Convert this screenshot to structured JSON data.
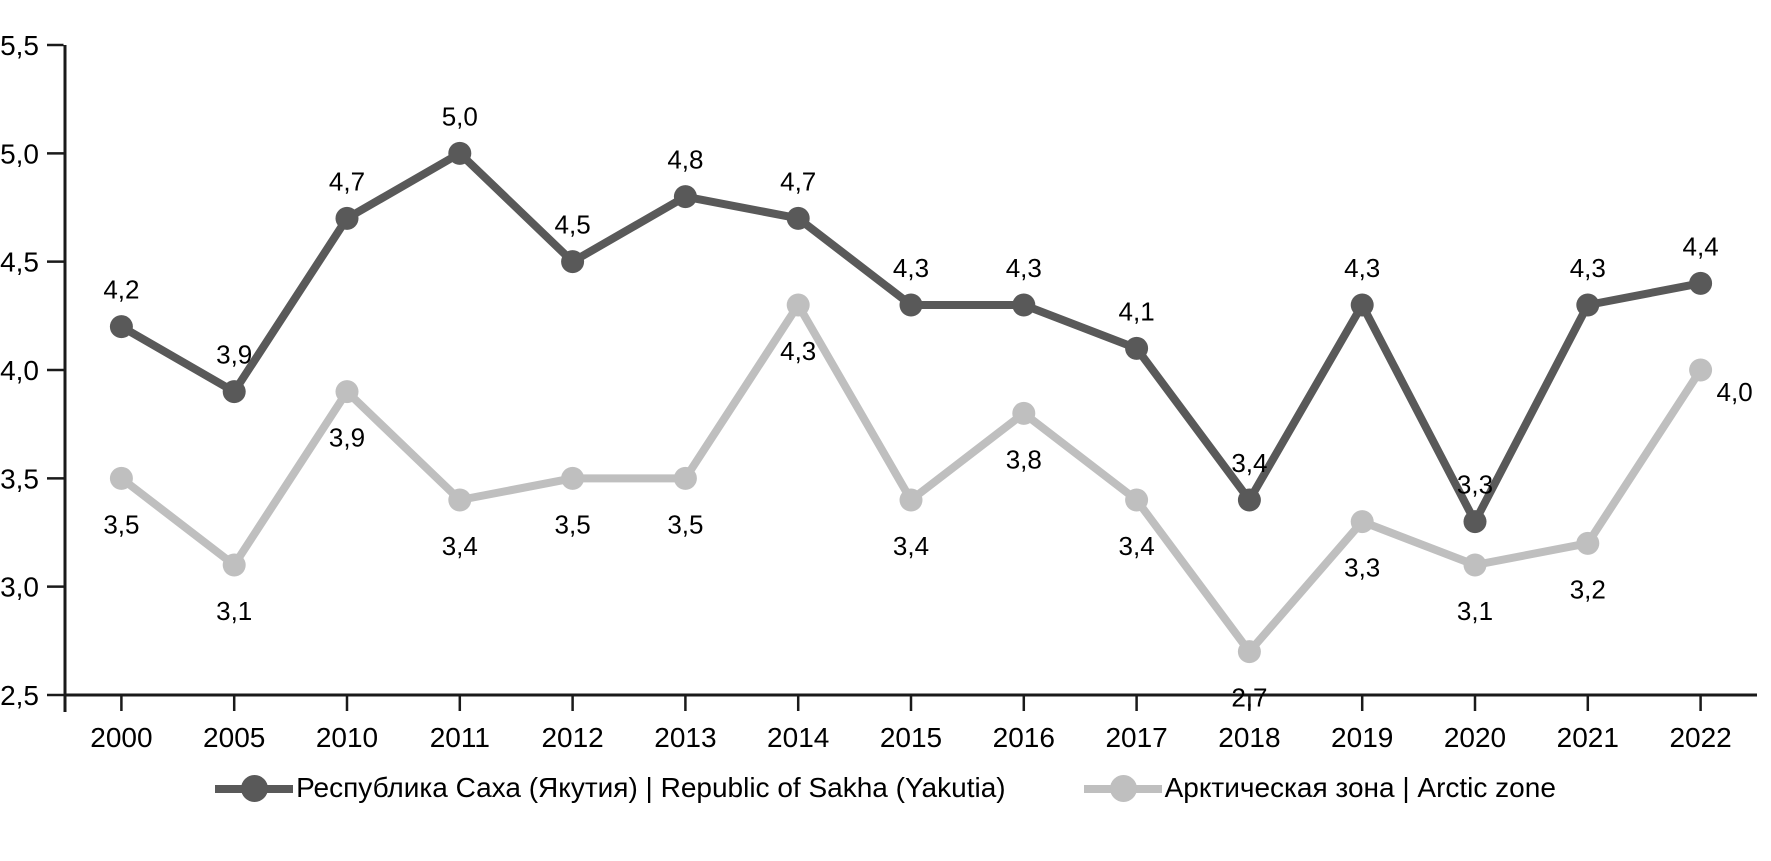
{
  "chart_data": {
    "type": "line",
    "title": "",
    "xlabel": "",
    "ylabel": "",
    "categories": [
      "2000",
      "2005",
      "2010",
      "2011",
      "2012",
      "2013",
      "2014",
      "2015",
      "2016",
      "2017",
      "2018",
      "2019",
      "2020",
      "2021",
      "2022"
    ],
    "series": [
      {
        "name": "Республика Саха (Якутия) | Republic of Sakha (Yakutia)",
        "color": "#595959",
        "values": [
          4.2,
          3.9,
          4.7,
          5.0,
          4.5,
          4.8,
          4.7,
          4.3,
          4.3,
          4.1,
          3.4,
          4.3,
          3.3,
          4.3,
          4.4
        ],
        "point_labels": [
          "4,2",
          "3,9",
          "4,7",
          "5,0",
          "4,5",
          "4,8",
          "4,7",
          "4,3",
          "4,3",
          "4,1",
          "3,4",
          "4,3",
          "3,3",
          "4,3",
          "4,4"
        ],
        "label_position": "above"
      },
      {
        "name": "Арктическая зона | Arctic zone",
        "color": "#bfbfbf",
        "values": [
          3.5,
          3.1,
          3.9,
          3.4,
          3.5,
          3.5,
          4.3,
          3.4,
          3.8,
          3.4,
          2.7,
          3.3,
          3.1,
          3.2,
          4.0
        ],
        "point_labels": [
          "3,5",
          "3,1",
          "3,9",
          "3,4",
          "3,5",
          "3,5",
          "4,3",
          "3,4",
          "3,8",
          "3,4",
          "2,7",
          "3,3",
          "3,1",
          "3,2",
          "4,0"
        ],
        "label_position": "below"
      }
    ],
    "y_axis": {
      "min": 2.5,
      "max": 5.5,
      "step": 0.5,
      "tick_labels": [
        "2,5",
        "3,0",
        "3,5",
        "4,0",
        "4,5",
        "5,0",
        "5,5"
      ]
    },
    "ylim": [
      2.5,
      5.5
    ],
    "grid": false,
    "decimal_separator": ",",
    "legend_position": "bottom",
    "axis_color": "#1a1a1a",
    "text_color": "#000000"
  }
}
